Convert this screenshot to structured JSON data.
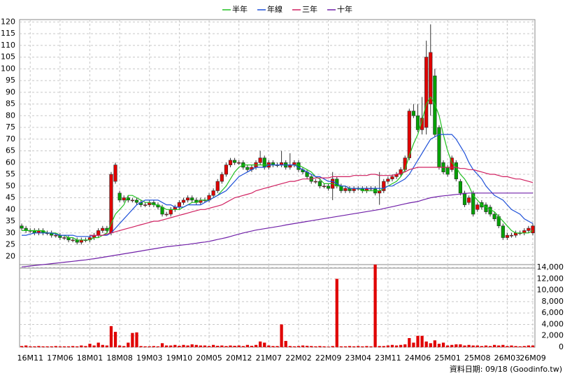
{
  "chart_data": {
    "type": "candlestick",
    "categories": [
      null,
      null,
      "16M11",
      null,
      null,
      null,
      null,
      null,
      null,
      "17M06",
      null,
      null,
      null,
      null,
      null,
      null,
      "18M01",
      null,
      null,
      null,
      null,
      null,
      null,
      "18M08",
      null,
      null,
      null,
      null,
      null,
      null,
      "19M03",
      null,
      null,
      null,
      null,
      null,
      null,
      "19M10",
      null,
      null,
      null,
      null,
      null,
      null,
      "20M05",
      null,
      null,
      null,
      null,
      null,
      null,
      "20M12",
      null,
      null,
      null,
      null,
      null,
      null,
      "21M07",
      null,
      null,
      null,
      null,
      null,
      null,
      "22M02",
      null,
      null,
      null,
      null,
      null,
      null,
      "22M09",
      null,
      null,
      null,
      null,
      null,
      null,
      "23M04",
      null,
      null,
      null,
      null,
      null,
      null,
      "23M11",
      null,
      null,
      null,
      null,
      null,
      null,
      "24M06",
      null,
      null,
      null,
      null,
      null,
      null,
      "25M01",
      null,
      null,
      null,
      null,
      null,
      null,
      "25M08",
      null,
      null,
      null,
      null,
      null,
      null,
      "26M03",
      null,
      null,
      null,
      null,
      null,
      "26M09"
    ],
    "open": [
      33,
      32,
      31,
      31,
      30,
      31,
      30,
      30,
      29,
      29,
      28,
      28,
      27,
      27,
      26,
      27,
      27,
      28,
      29,
      31,
      32,
      30,
      52,
      47,
      44,
      45,
      44,
      44,
      43,
      42,
      42,
      43,
      42,
      41,
      38,
      38,
      40,
      41,
      43,
      44,
      45,
      44,
      43,
      44,
      44,
      46,
      48,
      52,
      55,
      59,
      61,
      60,
      60,
      58,
      57,
      58,
      60,
      62,
      58,
      60,
      59,
      59,
      60,
      58,
      59,
      60,
      57,
      56,
      54,
      52,
      52,
      50,
      50,
      49,
      53,
      50,
      48,
      49,
      48,
      49,
      49,
      48,
      49,
      49,
      47,
      48,
      52,
      53,
      54,
      55,
      57,
      62,
      82,
      80,
      74,
      75,
      85,
      97,
      75,
      60,
      58,
      57,
      60,
      52,
      47,
      43,
      47,
      40,
      43,
      42,
      41,
      38,
      37,
      33,
      28,
      29,
      29,
      30,
      30,
      31,
      30
    ],
    "high": [
      34,
      33,
      32,
      32,
      32,
      32,
      31,
      31,
      30,
      30,
      29,
      29,
      28,
      28,
      28,
      28,
      29,
      30,
      32,
      33,
      33,
      56,
      60,
      48,
      46,
      46,
      45,
      45,
      44,
      43,
      44,
      44,
      43,
      42,
      39,
      41,
      42,
      44,
      45,
      46,
      46,
      45,
      45,
      45,
      47,
      49,
      53,
      56,
      60,
      62,
      62,
      61,
      61,
      59,
      59,
      61,
      65,
      63,
      61,
      61,
      60,
      65,
      61,
      64,
      61,
      61,
      58,
      57,
      55,
      53,
      53,
      51,
      51,
      56,
      54,
      51,
      50,
      50,
      50,
      50,
      50,
      50,
      50,
      50,
      56,
      53,
      54,
      55,
      56,
      58,
      63,
      83,
      85,
      85,
      88,
      112,
      119,
      100,
      76,
      61,
      59,
      63,
      61,
      53,
      48,
      46,
      48,
      43,
      44,
      43,
      42,
      39,
      38,
      34,
      30,
      30,
      31,
      31,
      32,
      33,
      34
    ],
    "low": [
      31,
      30,
      30,
      29,
      29,
      29,
      29,
      28,
      28,
      27,
      27,
      26,
      26,
      25,
      25,
      26,
      26,
      27,
      28,
      30,
      30,
      29,
      51,
      43,
      43,
      43,
      43,
      42,
      41,
      41,
      41,
      41,
      40,
      37,
      37,
      37,
      39,
      40,
      42,
      43,
      43,
      42,
      42,
      43,
      43,
      45,
      47,
      51,
      54,
      58,
      59,
      59,
      57,
      56,
      56,
      57,
      59,
      57,
      57,
      58,
      58,
      58,
      57,
      57,
      58,
      56,
      55,
      53,
      51,
      51,
      49,
      49,
      48,
      44,
      49,
      47,
      47,
      47,
      47,
      48,
      47,
      47,
      48,
      46,
      42,
      47,
      51,
      52,
      53,
      54,
      56,
      61,
      79,
      73,
      72,
      72,
      80,
      71,
      57,
      55,
      54,
      56,
      52,
      46,
      41,
      42,
      37,
      39,
      40,
      38,
      37,
      35,
      32,
      27,
      27,
      28,
      28,
      29,
      29,
      30,
      29
    ],
    "close": [
      32,
      31,
      31,
      30,
      31,
      30,
      30,
      29,
      29,
      28,
      28,
      27,
      27,
      26,
      27,
      27,
      28,
      29,
      31,
      32,
      31,
      55,
      59,
      44,
      45,
      44,
      44,
      43,
      42,
      42,
      43,
      42,
      41,
      38,
      38,
      40,
      41,
      43,
      44,
      45,
      44,
      43,
      44,
      44,
      46,
      48,
      52,
      55,
      59,
      61,
      60,
      60,
      58,
      57,
      58,
      60,
      62,
      58,
      60,
      59,
      59,
      60,
      58,
      59,
      60,
      57,
      56,
      54,
      52,
      52,
      50,
      50,
      49,
      53,
      50,
      48,
      49,
      48,
      49,
      49,
      48,
      49,
      49,
      47,
      48,
      52,
      53,
      54,
      55,
      57,
      62,
      82,
      80,
      74,
      79,
      105,
      107,
      72,
      58,
      56,
      55,
      62,
      53,
      47,
      42,
      45,
      38,
      42,
      41,
      39,
      38,
      36,
      33,
      28,
      29,
      29,
      30,
      30,
      31,
      32,
      33
    ],
    "up_color": "#e00000",
    "down_color": "#00a000",
    "ylim": [
      15,
      121
    ],
    "yticks": [
      20,
      25,
      30,
      35,
      40,
      45,
      50,
      55,
      60,
      65,
      70,
      75,
      80,
      85,
      90,
      95,
      100,
      105,
      110,
      115,
      120
    ],
    "grid": true,
    "legend": "top",
    "series": [
      {
        "name": "半年",
        "color": "#20c020",
        "values": [
          31,
          31,
          31,
          31,
          31,
          31,
          30,
          30,
          30,
          29,
          29,
          28,
          28,
          27,
          27,
          27,
          27,
          28,
          28,
          29,
          30,
          34,
          38,
          40,
          42,
          46,
          46,
          45,
          44,
          43,
          43,
          42,
          42,
          41,
          40,
          40,
          40,
          40,
          41,
          42,
          43,
          43,
          44,
          44,
          44,
          45,
          46,
          48,
          50,
          53,
          56,
          58,
          59,
          59,
          59,
          59,
          59,
          59,
          59,
          59,
          59,
          59,
          59,
          59,
          59,
          59,
          58,
          57,
          56,
          54,
          53,
          51,
          51,
          51,
          50,
          50,
          50,
          49,
          49,
          49,
          48,
          48,
          48,
          48,
          48,
          49,
          50,
          51,
          52,
          54,
          57,
          63,
          68,
          72,
          78,
          85,
          88,
          85,
          80,
          72,
          65,
          60,
          58,
          55,
          53,
          50,
          46,
          44,
          42,
          41,
          40,
          39,
          37,
          35,
          33,
          31,
          30,
          30,
          30,
          30,
          31
        ]
      },
      {
        "name": "年線",
        "color": "#1e50d8",
        "values": [
          29,
          29,
          29.5,
          30,
          30,
          30,
          30,
          30,
          29.5,
          29,
          29,
          29,
          29,
          28.5,
          28.5,
          28.5,
          28.5,
          29,
          29,
          29,
          29,
          30,
          32,
          34,
          36,
          38,
          40,
          42,
          43,
          44,
          44,
          44,
          44,
          43,
          42,
          42,
          41,
          41,
          41,
          42,
          42,
          42,
          42,
          43,
          44,
          45,
          46,
          47,
          48,
          50,
          52,
          54,
          55,
          56,
          57,
          58,
          58,
          58,
          59,
          59,
          59,
          59,
          59,
          59,
          59,
          58,
          57,
          56,
          55,
          54,
          54,
          53,
          52,
          52,
          51,
          50,
          50,
          49,
          49,
          49,
          49,
          49,
          49,
          49,
          49,
          49,
          50,
          50,
          51,
          52,
          53,
          55,
          58,
          61,
          64,
          67,
          70,
          71,
          72,
          72,
          72,
          72,
          70,
          67,
          64,
          60,
          57,
          55,
          53,
          50,
          48,
          46,
          45,
          44,
          42,
          40,
          39,
          38,
          36,
          35,
          34
        ]
      },
      {
        "name": "三年",
        "color": "#d02060",
        "values": [
          null,
          null,
          null,
          null,
          null,
          null,
          null,
          null,
          null,
          null,
          null,
          null,
          null,
          null,
          null,
          null,
          29,
          29,
          29,
          29,
          29.5,
          30,
          30.5,
          31,
          31.5,
          32,
          32.5,
          33,
          33.5,
          34,
          34.5,
          35,
          35,
          35.5,
          36,
          36.5,
          37,
          37.5,
          38,
          38.5,
          39,
          39.5,
          40,
          40,
          40.5,
          41,
          41.5,
          42,
          43,
          44,
          45,
          45.5,
          46,
          46.5,
          47,
          48,
          48.5,
          49,
          49.5,
          50,
          50.5,
          51,
          51.5,
          52,
          52,
          52.5,
          53,
          53,
          53,
          53.5,
          53.5,
          53.5,
          53.5,
          54,
          54,
          54,
          54,
          54,
          54.5,
          54.5,
          54.5,
          54.5,
          55,
          55,
          54.5,
          54.5,
          54.5,
          54.5,
          55,
          55.5,
          56,
          57,
          57.5,
          58,
          58,
          58,
          58,
          58,
          58,
          58,
          58,
          58,
          58,
          57.5,
          57.5,
          57,
          57,
          56.5,
          56,
          55.5,
          55,
          55,
          54.5,
          54,
          54,
          53.5,
          53,
          53,
          52.5,
          52,
          51.5
        ]
      },
      {
        "name": "十年",
        "color": "#7020a8",
        "values": [
          15.5,
          15.7,
          15.9,
          16.1,
          16.3,
          16.5,
          16.7,
          16.9,
          17.1,
          17.3,
          17.5,
          17.7,
          17.9,
          18.1,
          18.3,
          18.5,
          18.8,
          19,
          19.3,
          19.6,
          19.9,
          20.2,
          20.5,
          20.8,
          21.1,
          21.4,
          21.7,
          22,
          22.3,
          22.6,
          22.9,
          23.2,
          23.5,
          23.8,
          24.1,
          24.3,
          24.5,
          24.7,
          24.9,
          25.1,
          25.4,
          25.6,
          25.9,
          26.1,
          26.4,
          26.8,
          27.2,
          27.6,
          28,
          28.5,
          29,
          29.5,
          30,
          30.4,
          30.8,
          31.2,
          31.5,
          31.8,
          32.1,
          32.4,
          32.7,
          33,
          33.4,
          33.7,
          34,
          34.3,
          34.6,
          34.9,
          35.2,
          35.5,
          35.8,
          36.1,
          36.4,
          36.7,
          37,
          37.3,
          37.6,
          37.9,
          38.2,
          38.5,
          38.8,
          39.1,
          39.4,
          39.7,
          40,
          40.4,
          40.8,
          41.2,
          41.6,
          42,
          42.4,
          42.8,
          43.1,
          43.4,
          44,
          44.5,
          45,
          45.3,
          45.6,
          45.8,
          46,
          46.2,
          46.4,
          46.6,
          46.8,
          47,
          47,
          47,
          47,
          47,
          47,
          47,
          47,
          47,
          47,
          47,
          47,
          47,
          47,
          47,
          47
        ]
      }
    ],
    "volume": {
      "color": "#e00000",
      "ylim": [
        0,
        14500
      ],
      "yticks": [
        0,
        {
          "value": 2000,
          "label": "2,000"
        },
        {
          "value": 4000,
          "label": "4,000"
        },
        {
          "value": 6000,
          "label": "6,000"
        },
        {
          "value": 8000,
          "label": "8,000"
        },
        {
          "value": 10000,
          "label": "10,000"
        },
        {
          "value": 12000,
          "label": "12,000"
        },
        {
          "value": 14000,
          "label": "14,000"
        }
      ],
      "values": [
        200,
        300,
        150,
        150,
        200,
        150,
        150,
        150,
        200,
        150,
        150,
        150,
        200,
        150,
        300,
        200,
        600,
        300,
        800,
        400,
        300,
        3700,
        2700,
        300,
        200,
        800,
        2500,
        2600,
        200,
        150,
        150,
        200,
        150,
        700,
        300,
        300,
        400,
        250,
        400,
        300,
        500,
        400,
        300,
        300,
        200,
        400,
        250,
        300,
        200,
        300,
        250,
        300,
        200,
        400,
        250,
        400,
        1000,
        800,
        300,
        200,
        200,
        4000,
        1100,
        200,
        150,
        200,
        300,
        250,
        200,
        150,
        200,
        150,
        100,
        200,
        12000,
        150,
        150,
        200,
        150,
        200,
        150,
        200,
        150,
        14500,
        200,
        200,
        300,
        400,
        300,
        400,
        500,
        1600,
        800,
        2000,
        2000,
        1000,
        700,
        1200,
        600,
        800,
        300,
        400,
        500,
        500,
        300,
        400,
        300,
        300,
        200,
        300,
        200,
        400,
        300,
        400,
        200,
        300,
        200,
        150,
        200,
        300,
        300
      ]
    },
    "footnote": "資料日期: 09/18 (Goodinfo.tw)"
  }
}
